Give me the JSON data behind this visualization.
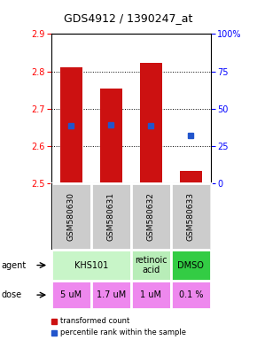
{
  "title": "GDS4912 / 1390247_at",
  "samples": [
    "GSM580630",
    "GSM580631",
    "GSM580632",
    "GSM580633"
  ],
  "bar_tops": [
    2.812,
    2.755,
    2.822,
    2.535
  ],
  "bar_bottom": 2.5,
  "percentile_values": [
    2.655,
    2.656,
    2.655,
    2.628
  ],
  "ylim": [
    2.5,
    2.9
  ],
  "yticks_left": [
    2.5,
    2.6,
    2.7,
    2.8,
    2.9
  ],
  "yticks_right_pct": [
    0,
    25,
    50,
    75,
    100
  ],
  "ytick_right_labels": [
    "0",
    "25",
    "50",
    "75",
    "100%"
  ],
  "bar_color": "#cc1111",
  "dot_color": "#2255cc",
  "agent_groups": [
    {
      "cols": [
        0,
        1
      ],
      "text": "KHS101",
      "color": "#c8f5c8"
    },
    {
      "cols": [
        2
      ],
      "text": "retinoic\nacid",
      "color": "#b8edb8"
    },
    {
      "cols": [
        3
      ],
      "text": "DMSO",
      "color": "#33cc44"
    }
  ],
  "dose_labels": [
    "5 uM",
    "1.7 uM",
    "1 uM",
    "0.1 %"
  ],
  "dose_color": "#ee88ee",
  "legend_bar_color": "#cc1111",
  "legend_dot_color": "#2255cc",
  "sample_label_bg": "#cccccc",
  "grid_pcts": [
    25,
    50,
    75
  ]
}
